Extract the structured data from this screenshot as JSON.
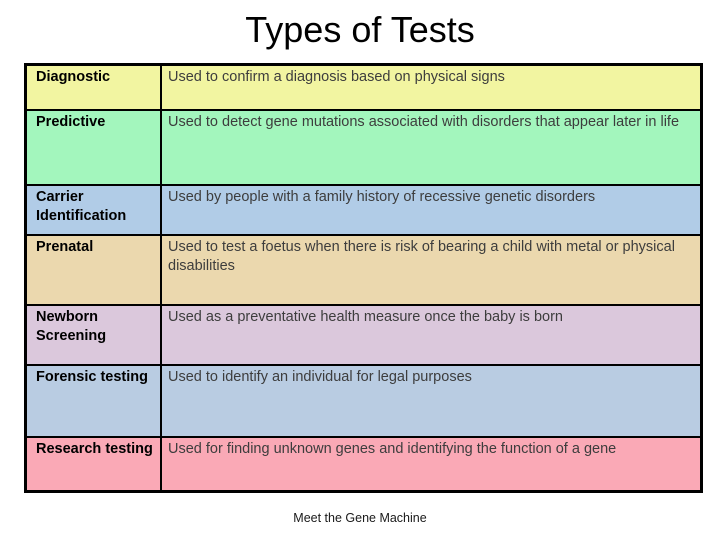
{
  "title": "Types of Tests",
  "footer": "Meet the Gene Machine",
  "table": {
    "rows": [
      {
        "label": "Diagnostic",
        "description": "Used to confirm a diagnosis based on physical signs",
        "bg": "#F2F5A1"
      },
      {
        "label": "Predictive",
        "description": "Used to detect gene mutations associated with disorders that appear later in life",
        "bg": "#A3F6BD"
      },
      {
        "label": "Carrier Identification",
        "description": "Used by people with a family history of recessive genetic disorders",
        "bg": "#B1CCE7"
      },
      {
        "label": "Prenatal",
        "description": "Used to test a foetus when there is risk of bearing a child with metal or physical disabilities",
        "bg": "#EBD8AE"
      },
      {
        "label": "Newborn Screening",
        "description": "Used as a preventative health measure once the baby is born",
        "bg": "#DBC8DC"
      },
      {
        "label": "Forensic testing",
        "description": "Used to identify an individual for legal purposes",
        "bg": "#B9CCE2"
      },
      {
        "label": "Research testing",
        "description": "Used for finding unknown genes and identifying the function of a gene",
        "bg": "#FAA9B6"
      }
    ]
  }
}
